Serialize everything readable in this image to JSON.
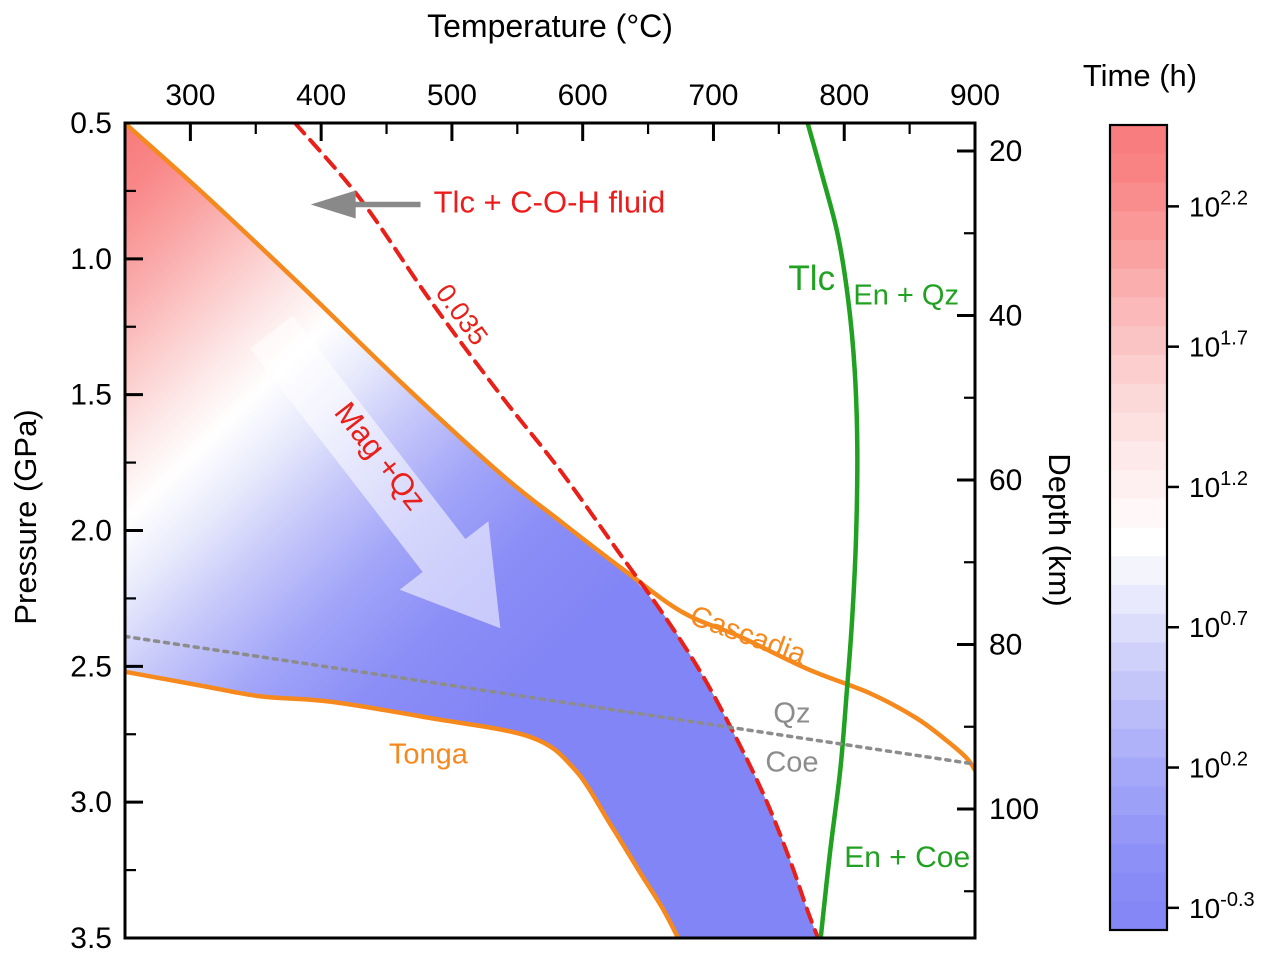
{
  "titles": {
    "top_axis": "Temperature (°C)",
    "left_axis": "Pressure (GPa)",
    "right_axis": "Depth (km)",
    "colorbar": "Time (h)"
  },
  "colors": {
    "orange": "#F6891E",
    "green": "#21A121",
    "red": "#E92019",
    "gray": "#8C8C8C",
    "blue_fill_max": "#8285F5",
    "red_fill_max": "#F8797A",
    "axis": "#000000"
  },
  "chart_data": {
    "type": "heatmap",
    "x_axis": {
      "label": "Temperature (°C)",
      "range": [
        250,
        900
      ],
      "position": "top",
      "major_ticks": [
        300,
        400,
        500,
        600,
        700,
        800,
        900
      ],
      "minor_ticks": [
        350,
        450,
        550,
        650,
        750,
        850
      ]
    },
    "y_axis": {
      "label": "Pressure (GPa)",
      "range": [
        0.5,
        3.5
      ],
      "increases_downward": true,
      "major_tick_labels": [
        "0.5",
        "1.0",
        "1.5",
        "2.0",
        "2.5",
        "3.0",
        "3.5"
      ],
      "major_ticks": [
        0.5,
        1.0,
        1.5,
        2.0,
        2.5,
        3.0,
        3.5
      ],
      "minor_ticks": [
        0.75,
        1.25,
        1.75,
        2.25,
        2.75,
        3.25
      ]
    },
    "y2_axis": {
      "label": "Depth (km)",
      "major_ticks": [
        20,
        40,
        60,
        80,
        100
      ],
      "minor_ticks": [
        30,
        50,
        70,
        90,
        110
      ]
    },
    "colorbar": {
      "label": "Time (h)",
      "tick_exponents": [
        "2.2",
        "1.7",
        "1.2",
        "0.7",
        "0.2",
        "-0.3"
      ],
      "tick_values": [
        2.2,
        1.7,
        1.2,
        0.7,
        0.2,
        -0.3
      ],
      "log10_range_top_to_bottom": [
        2.49,
        -0.379
      ],
      "bands": 28,
      "stops": [
        [
          0.0,
          "#F87A7B"
        ],
        [
          0.06,
          "#F98384"
        ],
        [
          0.14,
          "#FA9B9B"
        ],
        [
          0.24,
          "#FBBCBC"
        ],
        [
          0.34,
          "#FCD9D9"
        ],
        [
          0.44,
          "#FEEFF0"
        ],
        [
          0.52,
          "#FFFFFF"
        ],
        [
          0.58,
          "#EBECFC"
        ],
        [
          0.68,
          "#C9CBFA"
        ],
        [
          0.8,
          "#A6A9F8"
        ],
        [
          0.92,
          "#8B8EF6"
        ],
        [
          1.0,
          "#8285F5"
        ]
      ]
    },
    "fill_region": {
      "description": "reaction-time filled contours, red (long) at cold/low-P corner to blue (short)",
      "upper_right_outline": [
        [
          250,
          0.5
        ],
        [
          310,
          0.76
        ],
        [
          385,
          1.1
        ],
        [
          460,
          1.45
        ],
        [
          537,
          1.79
        ],
        [
          584,
          1.97
        ],
        [
          630,
          2.14
        ],
        [
          659,
          2.29
        ],
        [
          690,
          2.52
        ],
        [
          717,
          2.76
        ],
        [
          740,
          2.99
        ],
        [
          759,
          3.22
        ],
        [
          772,
          3.4
        ],
        [
          780,
          3.5
        ]
      ],
      "bottom_corner": [
        673,
        3.5
      ],
      "lower_outline_reversed": [
        [
          673,
          3.5
        ],
        [
          661,
          3.39
        ],
        [
          644,
          3.26
        ],
        [
          621,
          3.08
        ],
        [
          594,
          2.88
        ],
        [
          560,
          2.76
        ],
        [
          483,
          2.69
        ],
        [
          407,
          2.63
        ],
        [
          353,
          2.61
        ],
        [
          307,
          2.57
        ],
        [
          250,
          2.52
        ]
      ],
      "gradient": {
        "axis": [
          [
            250,
            0.5
          ],
          [
            613,
            2.29
          ]
        ],
        "stops": [
          [
            0.0,
            "#F8797A"
          ],
          [
            0.08,
            "#F98889"
          ],
          [
            0.17,
            "#FAA7A7"
          ],
          [
            0.27,
            "#FCCCCC"
          ],
          [
            0.35,
            "#FDE9E9"
          ],
          [
            0.42,
            "#FFFFFF"
          ],
          [
            0.5,
            "#E8EAFC"
          ],
          [
            0.6,
            "#C6C8FA"
          ],
          [
            0.72,
            "#A2A5F8"
          ],
          [
            0.85,
            "#8B8EF6"
          ],
          [
            1.0,
            "#8285F5"
          ]
        ]
      }
    },
    "curves": [
      {
        "name": "cascadia-geotherm",
        "label": "Cascadia",
        "color": "#F6891E",
        "width": 4.5,
        "dash": null,
        "points": [
          [
            252,
            0.51
          ],
          [
            310,
            0.76
          ],
          [
            385,
            1.1
          ],
          [
            460,
            1.45
          ],
          [
            537,
            1.79
          ],
          [
            584,
            1.97
          ],
          [
            630,
            2.14
          ],
          [
            676,
            2.3
          ],
          [
            720,
            2.39
          ],
          [
            772,
            2.51
          ],
          [
            820,
            2.6
          ],
          [
            855,
            2.69
          ],
          [
            880,
            2.78
          ],
          [
            894,
            2.84
          ],
          [
            901,
            2.89
          ]
        ]
      },
      {
        "name": "tonga-geotherm",
        "label": "Tonga",
        "color": "#F6891E",
        "width": 4.5,
        "dash": null,
        "points": [
          [
            250,
            2.52
          ],
          [
            307,
            2.57
          ],
          [
            353,
            2.61
          ],
          [
            407,
            2.63
          ],
          [
            483,
            2.69
          ],
          [
            560,
            2.76
          ],
          [
            594,
            2.88
          ],
          [
            621,
            3.08
          ],
          [
            644,
            3.26
          ],
          [
            661,
            3.39
          ],
          [
            673,
            3.5
          ]
        ]
      },
      {
        "name": "tlc-coh-fluid-boundary",
        "label": "0.035",
        "color": "#E92019",
        "width": 4,
        "dash": "14 9",
        "points": [
          [
            380,
            0.5
          ],
          [
            430,
            0.78
          ],
          [
            483,
            1.15
          ],
          [
            537,
            1.5
          ],
          [
            583,
            1.78
          ],
          [
            629,
            2.09
          ],
          [
            659,
            2.29
          ],
          [
            690,
            2.52
          ],
          [
            717,
            2.76
          ],
          [
            740,
            2.99
          ],
          [
            759,
            3.22
          ],
          [
            772,
            3.4
          ],
          [
            780,
            3.5
          ]
        ]
      },
      {
        "name": "tlc-en-qz-boundary",
        "label": "Tlc = En + Qz / En + Coe",
        "color": "#21A121",
        "width": 4.5,
        "dash": null,
        "points": [
          [
            772,
            0.5
          ],
          [
            783,
            0.69
          ],
          [
            795,
            0.91
          ],
          [
            803,
            1.15
          ],
          [
            808,
            1.41
          ],
          [
            810,
            1.7
          ],
          [
            809,
            2.03
          ],
          [
            806,
            2.33
          ],
          [
            802,
            2.59
          ],
          [
            797,
            2.88
          ],
          [
            789,
            3.19
          ],
          [
            782,
            3.5
          ]
        ]
      },
      {
        "name": "qz-coe-boundary",
        "label": "Qz / Coe",
        "color": "#8C8C8C",
        "width": 3.5,
        "dash": "4 6",
        "points": [
          [
            250,
            2.39
          ],
          [
            900,
            2.86
          ]
        ]
      }
    ],
    "annotations": [
      {
        "name": "label-tlc-coh-fluid",
        "text": "Tlc + C-O-H fluid",
        "color": "#ED1C1C",
        "T": 486,
        "P": 0.79,
        "rot": 0,
        "size": 31,
        "anchor": "start"
      },
      {
        "name": "label-0035",
        "text": "0.035",
        "color": "#E92019",
        "T": 502,
        "P": 1.19,
        "rot": 54,
        "size": 27,
        "anchor": "middle"
      },
      {
        "name": "label-mag-qz",
        "text": "Mag +Qz",
        "color": "#E92019",
        "T": 439,
        "P": 1.71,
        "rot": 52,
        "size": 31,
        "anchor": "middle"
      },
      {
        "name": "label-tlc",
        "text": "Tlc",
        "color": "#21A121",
        "T": 793,
        "P": 1.07,
        "rot": 0,
        "size": 35,
        "anchor": "end"
      },
      {
        "name": "label-en-qz",
        "text": "En + Qz",
        "color": "#21A121",
        "T": 807,
        "P": 1.13,
        "rot": 0,
        "size": 29,
        "anchor": "start"
      },
      {
        "name": "label-en-coe",
        "text": "En + Coe",
        "color": "#21A121",
        "T": 800,
        "P": 3.2,
        "rot": 0,
        "size": 30,
        "anchor": "start"
      },
      {
        "name": "label-cascadia",
        "text": "Cascadia",
        "color": "#F6891E",
        "T": 724,
        "P": 2.38,
        "rot": 20,
        "size": 29,
        "anchor": "middle"
      },
      {
        "name": "label-tonga",
        "text": "Tonga",
        "color": "#F6891E",
        "T": 482,
        "P": 2.82,
        "rot": 0,
        "size": 29,
        "anchor": "middle"
      },
      {
        "name": "label-qz",
        "text": "Qz",
        "color": "#8C8C8C",
        "T": 760,
        "P": 2.67,
        "rot": 0,
        "size": 29,
        "anchor": "middle"
      },
      {
        "name": "label-coe",
        "text": "Coe",
        "color": "#8C8C8C",
        "T": 760,
        "P": 2.85,
        "rot": 0,
        "size": 29,
        "anchor": "middle"
      }
    ],
    "arrows": [
      {
        "name": "mag-qz-block-arrow",
        "type": "block",
        "from": [
          362,
          1.27
        ],
        "to": [
          537,
          2.36
        ],
        "shaft_halfwidth": 27,
        "head_length": 92,
        "head_halfwidth": 56,
        "fill": "rgba(255,255,255,0.55)"
      },
      {
        "name": "tlc-fluid-direction-arrow",
        "type": "line",
        "from": [
          476,
          0.8
        ],
        "to": [
          392,
          0.8
        ],
        "color": "#898989",
        "width": 5.5,
        "head_length": 45,
        "head_halfwidth": 14
      }
    ]
  }
}
